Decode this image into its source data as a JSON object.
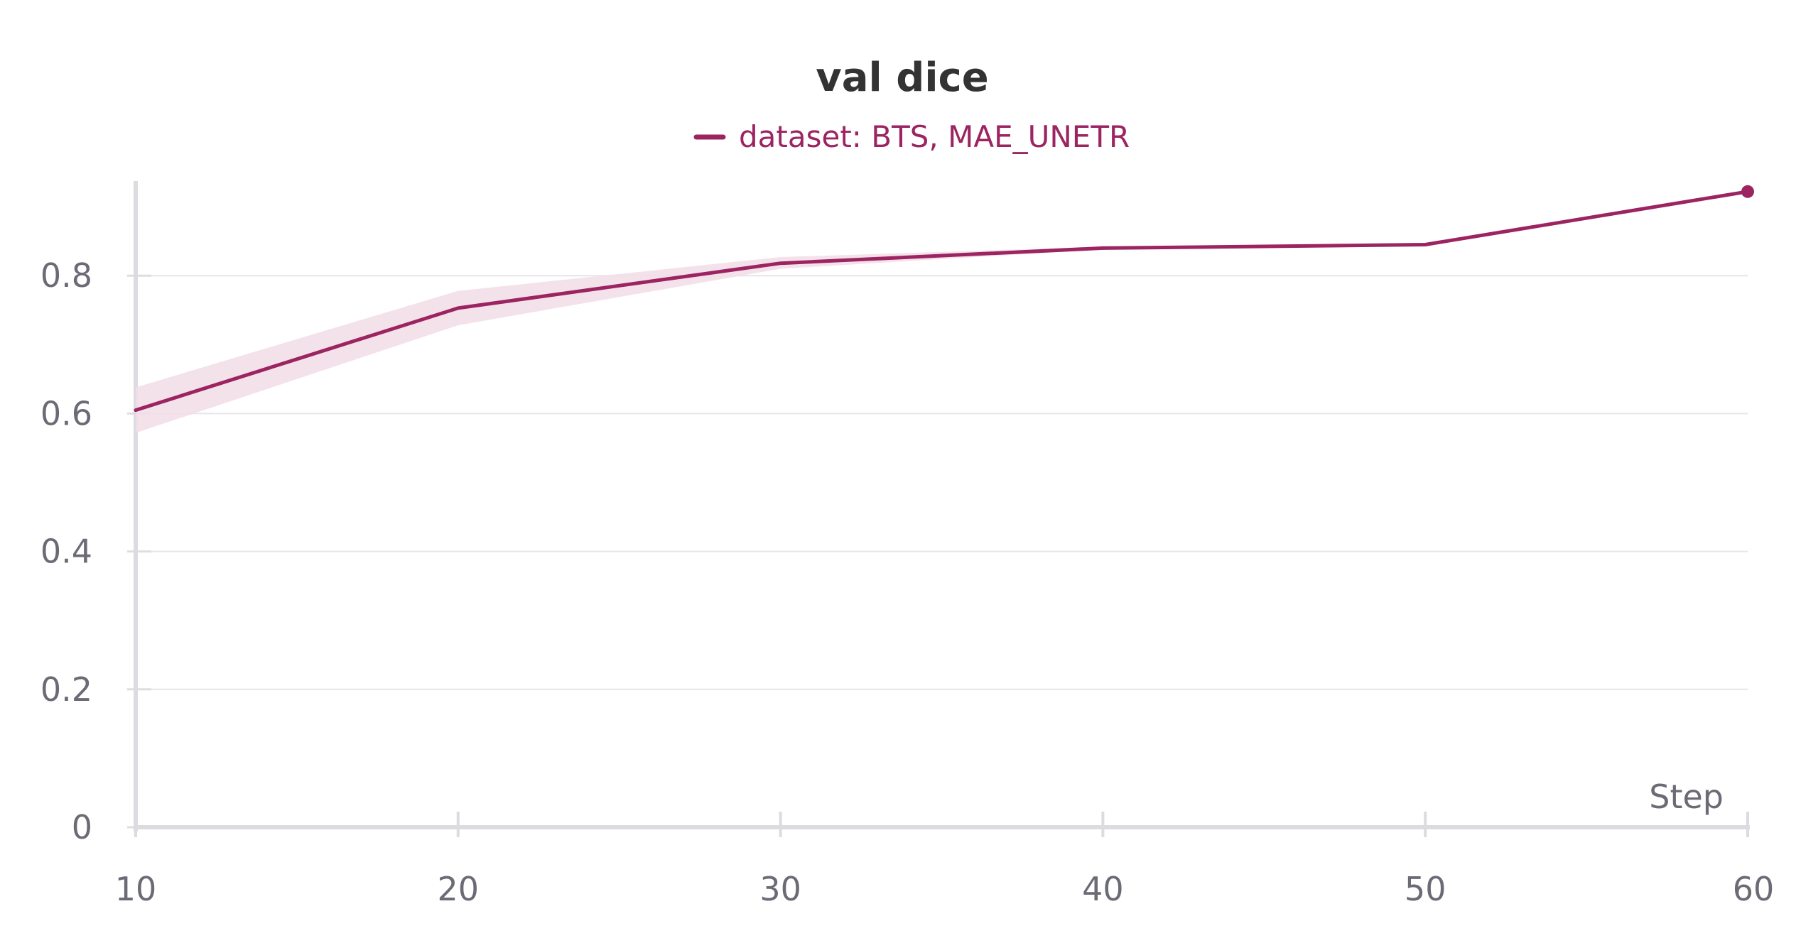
{
  "chart_data": {
    "type": "line",
    "title": "val dice",
    "xlabel": "Step",
    "ylabel": "",
    "x": [
      10,
      20,
      30,
      40,
      50,
      60
    ],
    "xlim": [
      10,
      60
    ],
    "ylim": [
      0,
      0.93
    ],
    "xticks": [
      "10",
      "20",
      "30",
      "40",
      "50",
      "60"
    ],
    "xtick_values": [
      10,
      20,
      30,
      40,
      50,
      60
    ],
    "yticks": [
      "0",
      "0.2",
      "0.4",
      "0.6",
      "0.8"
    ],
    "ytick_values": [
      0,
      0.2,
      0.4,
      0.6,
      0.8
    ],
    "grid": true,
    "legend_position": "top-center",
    "series": [
      {
        "name": "dataset: BTS, MAE_UNETR",
        "color": "#9c2461",
        "band_color": "#f2dde7",
        "values": [
          0.605,
          0.753,
          0.818,
          0.84,
          0.845,
          0.922
        ],
        "band_upper": [
          0.638,
          0.778,
          0.827,
          0.842,
          0.846,
          0.923
        ],
        "band_lower": [
          0.572,
          0.728,
          0.81,
          0.838,
          0.844,
          0.921
        ],
        "end_marker": true
      }
    ]
  }
}
